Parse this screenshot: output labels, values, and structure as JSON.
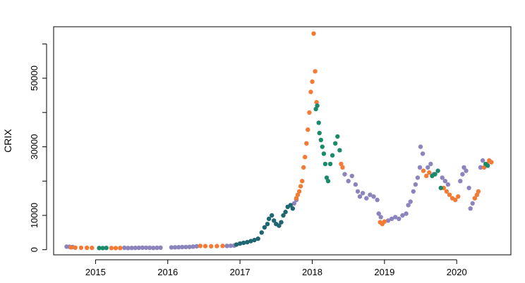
{
  "chart_data": {
    "type": "scatter",
    "title": "",
    "xlabel": "",
    "ylabel": "CRIX",
    "xlim": [
      2014.42,
      2020.75
    ],
    "ylim": [
      -1500,
      65000
    ],
    "x_ticks": [
      2015,
      2016,
      2017,
      2018,
      2019,
      2020
    ],
    "x_tick_labels": [
      "2015",
      "2016",
      "2017",
      "2018",
      "2019",
      "2020"
    ],
    "y_ticks": [
      0,
      10000,
      30000,
      50000
    ],
    "y_tick_labels": [
      "0",
      "10000",
      "30000",
      "50000"
    ],
    "y_minor_ticks": [
      20000,
      40000,
      60000
    ],
    "grid": false,
    "legend": "none",
    "colors": {
      "regime_1": "#8B84BD",
      "regime_2": "#F47B35",
      "regime_3": "#1B8A6B",
      "regime_4": "#1F6670"
    },
    "series": [
      {
        "color": "regime_1",
        "points": [
          [
            2014.6,
            900
          ],
          [
            2014.64,
            850
          ],
          [
            2014.68,
            800
          ],
          [
            2015.4,
            550
          ],
          [
            2015.45,
            500
          ],
          [
            2015.5,
            520
          ],
          [
            2015.55,
            540
          ],
          [
            2015.6,
            560
          ],
          [
            2015.65,
            600
          ],
          [
            2015.7,
            580
          ],
          [
            2015.75,
            550
          ],
          [
            2015.8,
            520
          ],
          [
            2015.85,
            560
          ],
          [
            2015.9,
            600
          ],
          [
            2016.05,
            650
          ],
          [
            2016.1,
            700
          ],
          [
            2016.15,
            720
          ],
          [
            2016.2,
            750
          ],
          [
            2016.25,
            780
          ],
          [
            2016.3,
            820
          ],
          [
            2016.35,
            900
          ],
          [
            2016.4,
            1000
          ],
          [
            2016.82,
            1100
          ],
          [
            2016.87,
            1150
          ],
          [
            2016.92,
            1200
          ],
          [
            2017.75,
            13500
          ],
          [
            2017.78,
            14500
          ],
          [
            2018.45,
            22000
          ],
          [
            2018.5,
            20000
          ],
          [
            2018.55,
            21500
          ],
          [
            2018.6,
            19000
          ],
          [
            2018.63,
            17000
          ],
          [
            2018.66,
            15500
          ],
          [
            2018.7,
            16500
          ],
          [
            2018.75,
            15000
          ],
          [
            2018.8,
            16000
          ],
          [
            2018.85,
            15500
          ],
          [
            2018.9,
            14500
          ],
          [
            2018.92,
            10500
          ],
          [
            2018.95,
            9500
          ],
          [
            2019.05,
            8500
          ],
          [
            2019.1,
            9000
          ],
          [
            2019.15,
            9500
          ],
          [
            2019.2,
            9000
          ],
          [
            2019.25,
            10000
          ],
          [
            2019.3,
            10500
          ],
          [
            2019.33,
            13000
          ],
          [
            2019.36,
            14000
          ],
          [
            2019.4,
            17000
          ],
          [
            2019.43,
            19000
          ],
          [
            2019.46,
            21000
          ],
          [
            2019.49,
            24000
          ],
          [
            2019.5,
            30000
          ],
          [
            2019.53,
            28000
          ],
          [
            2019.6,
            24000
          ],
          [
            2019.64,
            25000
          ],
          [
            2019.68,
            22000
          ],
          [
            2019.8,
            21000
          ],
          [
            2019.84,
            20000
          ],
          [
            2019.88,
            19000
          ],
          [
            2020.05,
            20000
          ],
          [
            2020.08,
            22000
          ],
          [
            2020.1,
            24000
          ],
          [
            2020.13,
            23000
          ],
          [
            2020.17,
            18000
          ],
          [
            2020.19,
            12000
          ],
          [
            2020.22,
            13500
          ],
          [
            2020.25,
            15000
          ],
          [
            2020.33,
            24000
          ],
          [
            2020.36,
            26000
          ]
        ]
      },
      {
        "color": "regime_2",
        "points": [
          [
            2014.66,
            700
          ],
          [
            2014.72,
            600
          ],
          [
            2014.8,
            580
          ],
          [
            2014.88,
            560
          ],
          [
            2014.95,
            540
          ],
          [
            2015.22,
            500
          ],
          [
            2015.28,
            480
          ],
          [
            2015.34,
            500
          ],
          [
            2016.45,
            1100
          ],
          [
            2016.52,
            1050
          ],
          [
            2016.6,
            1000
          ],
          [
            2016.68,
            1050
          ],
          [
            2016.76,
            1100
          ],
          [
            2017.78,
            15000
          ],
          [
            2017.8,
            16000
          ],
          [
            2017.82,
            17000
          ],
          [
            2017.84,
            18500
          ],
          [
            2017.86,
            20000
          ],
          [
            2017.88,
            24000
          ],
          [
            2017.9,
            27000
          ],
          [
            2017.92,
            31000
          ],
          [
            2017.94,
            35000
          ],
          [
            2017.96,
            40000
          ],
          [
            2017.98,
            46000
          ],
          [
            2018.0,
            49000
          ],
          [
            2018.02,
            63000
          ],
          [
            2018.04,
            52000
          ],
          [
            2018.06,
            43000
          ],
          [
            2018.4,
            25000
          ],
          [
            2018.42,
            24000
          ],
          [
            2018.94,
            8000
          ],
          [
            2018.97,
            7500
          ],
          [
            2019.0,
            8200
          ],
          [
            2019.54,
            23000
          ],
          [
            2019.58,
            21500
          ],
          [
            2019.62,
            22500
          ],
          [
            2019.82,
            18000
          ],
          [
            2019.86,
            17000
          ],
          [
            2019.9,
            16000
          ],
          [
            2019.94,
            15000
          ],
          [
            2019.98,
            14500
          ],
          [
            2020.02,
            15500
          ],
          [
            2020.25,
            15000
          ],
          [
            2020.28,
            16000
          ],
          [
            2020.3,
            17000
          ],
          [
            2020.38,
            24000
          ],
          [
            2020.42,
            25000
          ],
          [
            2020.45,
            26000
          ],
          [
            2020.48,
            25500
          ]
        ]
      },
      {
        "color": "regime_3",
        "points": [
          [
            2015.05,
            500
          ],
          [
            2015.1,
            480
          ],
          [
            2015.15,
            520
          ],
          [
            2018.05,
            41000
          ],
          [
            2018.07,
            42000
          ],
          [
            2018.09,
            37000
          ],
          [
            2018.1,
            34000
          ],
          [
            2018.12,
            32000
          ],
          [
            2018.14,
            30000
          ],
          [
            2018.16,
            28000
          ],
          [
            2018.18,
            25000
          ],
          [
            2018.2,
            21000
          ],
          [
            2018.22,
            20000
          ],
          [
            2018.25,
            25000
          ],
          [
            2018.28,
            27500
          ],
          [
            2018.32,
            31000
          ],
          [
            2018.35,
            33000
          ],
          [
            2018.38,
            29000
          ],
          [
            2019.66,
            21500
          ],
          [
            2019.7,
            22000
          ],
          [
            2019.74,
            23000
          ],
          [
            2019.78,
            18000
          ],
          [
            2020.4,
            25000
          ],
          [
            2020.43,
            24500
          ]
        ]
      },
      {
        "color": "regime_4",
        "points": [
          [
            2016.95,
            1500
          ],
          [
            2017.0,
            1800
          ],
          [
            2017.05,
            2000
          ],
          [
            2017.1,
            2200
          ],
          [
            2017.15,
            2500
          ],
          [
            2017.2,
            2800
          ],
          [
            2017.25,
            3200
          ],
          [
            2017.3,
            5000
          ],
          [
            2017.34,
            6500
          ],
          [
            2017.38,
            7500
          ],
          [
            2017.4,
            9000
          ],
          [
            2017.44,
            10000
          ],
          [
            2017.47,
            8500
          ],
          [
            2017.5,
            7500
          ],
          [
            2017.54,
            7000
          ],
          [
            2017.57,
            8000
          ],
          [
            2017.6,
            10000
          ],
          [
            2017.63,
            11000
          ],
          [
            2017.66,
            12500
          ],
          [
            2017.7,
            13000
          ],
          [
            2017.73,
            12000
          ]
        ]
      }
    ]
  }
}
